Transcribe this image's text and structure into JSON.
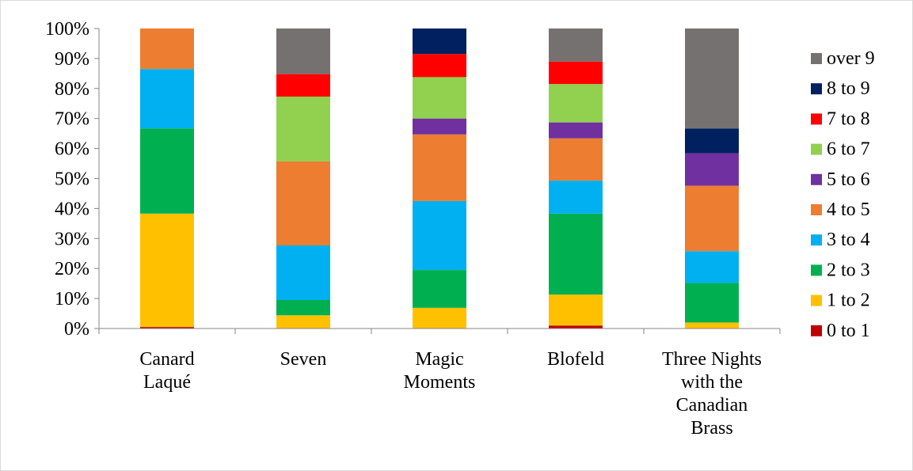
{
  "chart_data": {
    "type": "bar",
    "stacked": "percent",
    "categories": [
      [
        "Canard",
        "Laqué"
      ],
      [
        "Seven"
      ],
      [
        "Magic",
        "Moments"
      ],
      [
        "Blofeld"
      ],
      [
        "Three Nights",
        "with the",
        "Canadian",
        "Brass"
      ]
    ],
    "ylim": [
      0,
      100
    ],
    "yticks": [
      "0%",
      "10%",
      "20%",
      "30%",
      "40%",
      "50%",
      "60%",
      "70%",
      "80%",
      "90%",
      "100%"
    ],
    "legend_position": "right",
    "grid": false,
    "series": [
      {
        "name": "0 to 1",
        "color": "#c00000",
        "values": [
          0.5,
          0.0,
          0.0,
          1.0,
          0.0
        ]
      },
      {
        "name": "1 to 2",
        "color": "#ffc000",
        "values": [
          37.8,
          4.4,
          6.9,
          10.3,
          2.0
        ]
      },
      {
        "name": "2 to 3",
        "color": "#00b050",
        "values": [
          28.4,
          5.1,
          12.6,
          27.0,
          13.2
        ]
      },
      {
        "name": "3 to 4",
        "color": "#00b0f0",
        "values": [
          19.8,
          18.2,
          23.0,
          11.0,
          10.6
        ]
      },
      {
        "name": "4 to 5",
        "color": "#ed7d31",
        "values": [
          13.5,
          28.0,
          22.2,
          14.1,
          21.8
        ]
      },
      {
        "name": "5 to 6",
        "color": "#7030a0",
        "values": [
          0.0,
          0.0,
          5.3,
          5.3,
          10.8
        ]
      },
      {
        "name": "6 to 7",
        "color": "#92d050",
        "values": [
          0.0,
          21.6,
          13.8,
          12.8,
          0.0
        ]
      },
      {
        "name": "7 to 8",
        "color": "#ff0000",
        "values": [
          0.0,
          7.5,
          7.7,
          7.5,
          0.0
        ]
      },
      {
        "name": "8 to 9",
        "color": "#002060",
        "values": [
          0.0,
          0.0,
          8.5,
          0.0,
          8.3
        ]
      },
      {
        "name": "over 9",
        "color": "#767171",
        "values": [
          0.0,
          15.2,
          0.0,
          11.0,
          33.3
        ]
      }
    ]
  }
}
